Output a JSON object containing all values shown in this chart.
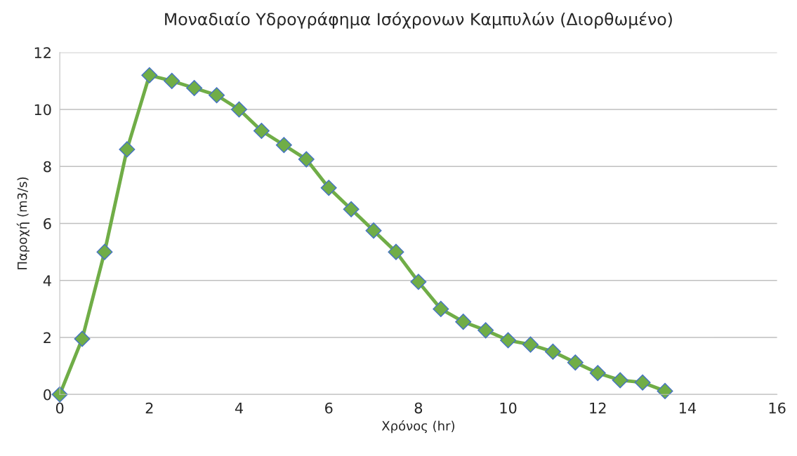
{
  "chart_data": {
    "type": "line",
    "title": "Μοναδιαίο Υδρογράφημα Ισόχρονων Καμπυλών (Διορθωμένο)",
    "xlabel": "Χρόνος (hr)",
    "ylabel": "Παροχή (m3/s)",
    "x": [
      0,
      0.5,
      1,
      1.5,
      2,
      2.5,
      3,
      3.5,
      4,
      4.5,
      5,
      5.5,
      6,
      6.5,
      7,
      7.5,
      8,
      8.5,
      9,
      9.5,
      10,
      10.5,
      11,
      11.5,
      12,
      12.5,
      13,
      13.5
    ],
    "series": [
      {
        "color": "#70ad47",
        "values": [
          0,
          1.95,
          5.0,
          8.6,
          11.2,
          11.0,
          10.75,
          10.5,
          10.0,
          9.25,
          8.75,
          8.25,
          7.25,
          6.5,
          5.75,
          5.0,
          3.95,
          3.0,
          2.55,
          2.25,
          1.9,
          1.75,
          1.5,
          1.12,
          0.75,
          0.5,
          0.42,
          0.12
        ]
      }
    ],
    "xlim": [
      0,
      16
    ],
    "xticks": [
      0,
      2,
      4,
      6,
      8,
      10,
      12,
      14,
      16
    ],
    "ylim": [
      0,
      12
    ],
    "yticks": [
      0,
      2,
      4,
      6,
      8,
      10,
      12
    ],
    "grid": "y",
    "marker": "diamond",
    "line_style": "solid"
  }
}
